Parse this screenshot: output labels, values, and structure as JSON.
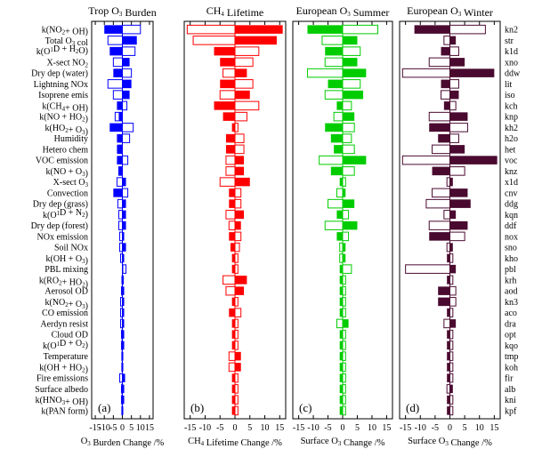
{
  "chart_data": {
    "type": "bar",
    "xlim": [
      -17,
      17
    ],
    "xticks": [
      -15,
      -10,
      -5,
      0,
      5,
      10,
      15
    ],
    "categories": [
      "k(NO2+ OH)",
      "Total O3 col",
      "k(O1D + H2O)",
      "X-sect NO2",
      "Dry dep (water)",
      "Lightning NOx",
      "Isoprene emis",
      "k(CH4+ OH)",
      "k(NO + HO2)",
      "k(HO2+ O3)",
      "Humidity",
      "Hetero chem",
      "VOC emission",
      "k(NO + O3)",
      "X-sect O3",
      "Convection",
      "Dry dep (grass)",
      "k(O1D + N2)",
      "Dry dep (forest)",
      "NOx emission",
      "Soil NOx",
      "k(OH + O3)",
      "PBL mixing",
      "k(RO2+ HO2)",
      "Aerosol OD",
      "k(NO2+ O3)",
      "CO emission",
      "Aerdyn resist",
      "Cloud OD",
      "k(O1D + O2)",
      "Temperature",
      "k(OH + HO2)",
      "Fire emissions",
      "Surface albedo",
      "k(HNO3+ OH)",
      "k(PAN form)"
    ],
    "codes": [
      "kn2",
      "str",
      "k1d",
      "xno",
      "ddw",
      "lit",
      "iso",
      "kch",
      "knp",
      "kh2",
      "h2o",
      "het",
      "voc",
      "knz",
      "x1d",
      "cnv",
      "ddg",
      "kqn",
      "ddf",
      "nox",
      "sno",
      "kho",
      "pbl",
      "krh",
      "aod",
      "kn3",
      "aco",
      "dra",
      "opt",
      "kqo",
      "tmp",
      "koh",
      "fir",
      "alb",
      "kni",
      "kpf"
    ],
    "panels": [
      {
        "label": "(a)",
        "title": "Trop O3 Burden",
        "xlabel": "O3 Burden Change /%",
        "color": "#0000ff",
        "filled": [
          -10,
          8,
          -7,
          4,
          -5,
          5,
          4,
          -3,
          -2,
          -7,
          -3,
          -3,
          -3,
          -2,
          2,
          -5,
          2,
          2,
          2,
          1,
          2,
          1,
          0.5,
          -0.5,
          1,
          1,
          1,
          1,
          1,
          1,
          0.5,
          0.5,
          1.5,
          1,
          1,
          0.5
        ],
        "outline": [
          10,
          -8,
          7,
          -5,
          5,
          -8,
          -5,
          2.5,
          -4,
          6,
          4,
          -2.5,
          3,
          -2,
          -3,
          3,
          -2.5,
          -2,
          -2,
          -1.5,
          -1.5,
          -1,
          2,
          0.5,
          -0.5,
          -1,
          -1,
          -1,
          -0.5,
          -0.5,
          -0.3,
          -0.3,
          -1.5,
          -0.5,
          -0.5,
          -0.3
        ]
      },
      {
        "label": "(b)",
        "title": "CH4 Lifetime",
        "xlabel": "CH4 Lifetime Change /%",
        "color": "#ff0000",
        "filled": [
          16,
          14,
          -7,
          -5,
          4,
          -5,
          5,
          -7,
          -4,
          -1,
          -3,
          -3,
          3,
          3,
          5,
          -2,
          -2,
          3,
          2,
          -2,
          -1.5,
          -1,
          -1,
          4,
          3,
          -1,
          -2,
          -1,
          -1,
          -1,
          2,
          2,
          -1,
          -1,
          -1,
          -1
        ],
        "outline": [
          -16,
          -14,
          8,
          6,
          -4,
          6,
          -5,
          8,
          4,
          1,
          3,
          3,
          -3,
          -3,
          -5,
          2,
          2,
          -3,
          -2,
          2,
          1.5,
          1,
          1,
          -4,
          -3,
          1,
          2,
          1,
          1,
          1,
          -2,
          -2,
          1,
          1,
          1,
          1
        ]
      },
      {
        "label": "(c)",
        "title": "European O3 Summer",
        "xlabel": "Surface O3 Change /%",
        "color": "#00cc00",
        "filled": [
          -12,
          5,
          -6,
          5,
          8,
          -5,
          7,
          -2,
          4,
          -6,
          -4,
          -3,
          8,
          -4,
          -1,
          1,
          4,
          -2,
          5,
          -2,
          1,
          1,
          -1,
          -1,
          -1,
          -1,
          -1,
          2,
          -1,
          -1,
          -1,
          -1,
          -1,
          -1,
          -1,
          -1
        ],
        "outline": [
          12,
          -7,
          6,
          -6,
          -12,
          6,
          -6,
          3,
          -3,
          4,
          3,
          4,
          -8,
          4,
          1,
          -2,
          -5,
          2,
          -6,
          2,
          -1,
          -1,
          3,
          1,
          1,
          1,
          1,
          -2,
          1,
          1,
          1,
          1,
          1,
          1,
          1,
          1
        ]
      },
      {
        "label": "(d)",
        "title": "European O3 Winter",
        "xlabel": "Surface O3 Change /%",
        "color": "#4a0a30",
        "filled": [
          -12,
          2,
          -3,
          5,
          15,
          -3,
          3,
          -2,
          6,
          -7,
          -4,
          5,
          16,
          -6,
          1,
          6,
          7,
          2,
          6,
          -7,
          1,
          -1,
          2,
          -1,
          -4,
          -4,
          -1,
          2,
          -1,
          -1,
          -1,
          -1,
          -1,
          1,
          -1,
          -1
        ],
        "outline": [
          12,
          -2,
          3,
          -7,
          -16,
          3,
          -3,
          2,
          -7,
          6,
          3,
          -6,
          -16,
          5,
          -1,
          -6,
          -8,
          -2,
          -7,
          5,
          -1,
          1,
          -15,
          1,
          2,
          2,
          1,
          -2,
          1,
          1,
          1,
          1,
          1,
          -1,
          1,
          1
        ]
      }
    ]
  }
}
